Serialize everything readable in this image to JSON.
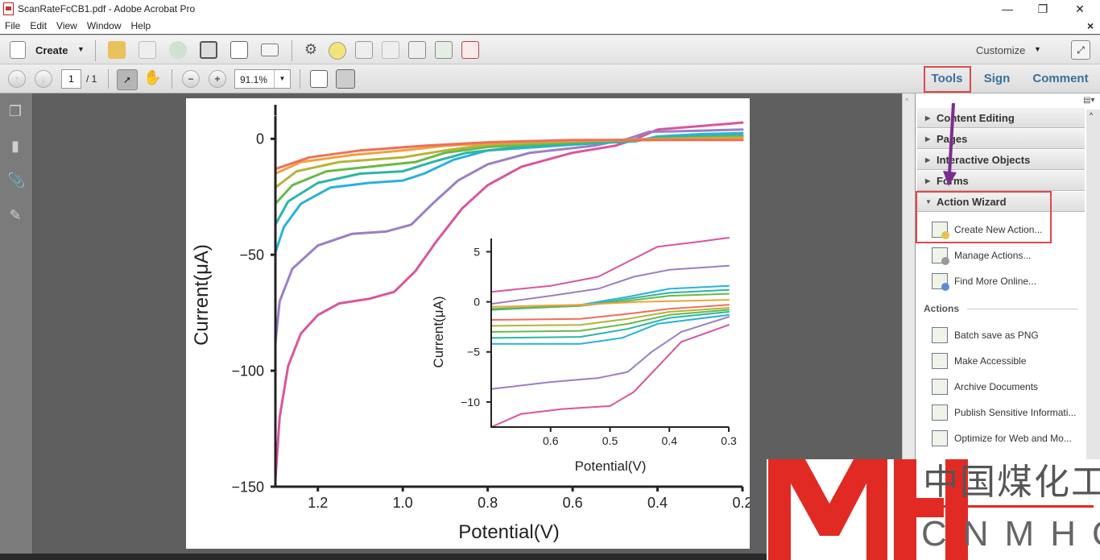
{
  "window": {
    "title": "ScanRateFcCB1.pdf - Adobe Acrobat Pro",
    "controls": [
      "—",
      "❐",
      "✕"
    ]
  },
  "menu": [
    "File",
    "Edit",
    "View",
    "Window",
    "Help"
  ],
  "toolbar": {
    "create_label": "Create",
    "customize_label": "Customize",
    "close_doc": "×"
  },
  "nav": {
    "page_current": "1",
    "page_total": "/ 1",
    "zoom": "91.1%"
  },
  "tabs": [
    "Tools",
    "Sign",
    "Comment"
  ],
  "panel": {
    "sections": [
      {
        "label": "Content Editing",
        "expanded": false
      },
      {
        "label": "Pages",
        "expanded": false
      },
      {
        "label": "Interactive Objects",
        "expanded": false
      },
      {
        "label": "Forms",
        "expanded": false
      },
      {
        "label": "Action Wizard",
        "expanded": true
      }
    ],
    "wizard_items": [
      "Create New Action...",
      "Manage Actions...",
      "Find More Online..."
    ],
    "actions_heading": "Actions",
    "actions": [
      "Batch save as PNG",
      "Make Accessible",
      "Archive Documents",
      "Publish Sensitive Informati...",
      "Optimize for Web and Mo..."
    ]
  },
  "annotation_color": "#7b2d8e",
  "highlight_color": "#e04848",
  "watermark": {
    "chinese": "中国煤化工",
    "latin": "CNMHG"
  },
  "chart_data": [
    {
      "type": "line",
      "xlabel": "Potential(V)",
      "ylabel": "Current(μA)",
      "xlim": [
        1.3,
        0.2
      ],
      "ylim": [
        -150,
        10
      ],
      "x_reversed": true,
      "xticks": [
        "1.2",
        "1.0",
        "0.8",
        "0.6",
        "0.4",
        "0.2"
      ],
      "xtick_values": [
        1.2,
        1.0,
        0.8,
        0.6,
        0.4,
        0.2
      ],
      "yticks": [
        "0",
        "−50",
        "−100",
        "−150"
      ],
      "ytick_values": [
        0,
        -50,
        -100,
        -150
      ],
      "series": [
        {
          "color": "#d9559e",
          "points": [
            [
              1.3,
              -147
            ],
            [
              1.29,
              -120
            ],
            [
              1.27,
              -98
            ],
            [
              1.24,
              -84
            ],
            [
              1.2,
              -76
            ],
            [
              1.15,
              -71
            ],
            [
              1.08,
              -69
            ],
            [
              1.02,
              -66
            ],
            [
              0.97,
              -57
            ],
            [
              0.92,
              -44
            ],
            [
              0.86,
              -30
            ],
            [
              0.8,
              -20
            ],
            [
              0.72,
              -12
            ],
            [
              0.6,
              -6
            ],
            [
              0.5,
              -3
            ],
            [
              0.45,
              0
            ],
            [
              0.4,
              4
            ],
            [
              0.3,
              5.5
            ],
            [
              0.2,
              7
            ]
          ]
        },
        {
          "color": "#9b7fc4",
          "points": [
            [
              1.3,
              -88
            ],
            [
              1.29,
              -70
            ],
            [
              1.26,
              -56
            ],
            [
              1.2,
              -46
            ],
            [
              1.12,
              -41
            ],
            [
              1.04,
              -40
            ],
            [
              0.98,
              -37
            ],
            [
              0.93,
              -28
            ],
            [
              0.87,
              -18
            ],
            [
              0.8,
              -11
            ],
            [
              0.7,
              -6
            ],
            [
              0.55,
              -3
            ],
            [
              0.47,
              0
            ],
            [
              0.42,
              3
            ],
            [
              0.3,
              3.5
            ],
            [
              0.2,
              4
            ]
          ]
        },
        {
          "color": "#2ab1dc",
          "points": [
            [
              1.3,
              -49
            ],
            [
              1.28,
              -38
            ],
            [
              1.24,
              -28
            ],
            [
              1.17,
              -21
            ],
            [
              1.08,
              -19
            ],
            [
              1.0,
              -18
            ],
            [
              0.95,
              -15
            ],
            [
              0.88,
              -9
            ],
            [
              0.8,
              -5
            ],
            [
              0.6,
              -2.5
            ],
            [
              0.45,
              -1
            ],
            [
              0.4,
              1
            ],
            [
              0.3,
              2
            ],
            [
              0.2,
              2.5
            ]
          ]
        },
        {
          "color": "#2cb5a5",
          "points": [
            [
              1.3,
              -37
            ],
            [
              1.27,
              -27
            ],
            [
              1.2,
              -19
            ],
            [
              1.1,
              -15
            ],
            [
              1.0,
              -14
            ],
            [
              0.93,
              -10
            ],
            [
              0.85,
              -6
            ],
            [
              0.7,
              -3
            ],
            [
              0.45,
              -1
            ],
            [
              0.4,
              0.5
            ],
            [
              0.2,
              1.5
            ]
          ]
        },
        {
          "color": "#6ab84a",
          "points": [
            [
              1.3,
              -28
            ],
            [
              1.26,
              -20
            ],
            [
              1.18,
              -14
            ],
            [
              1.05,
              -11.5
            ],
            [
              0.97,
              -10
            ],
            [
              0.9,
              -6
            ],
            [
              0.8,
              -3.5
            ],
            [
              0.6,
              -1.5
            ],
            [
              0.4,
              0
            ],
            [
              0.2,
              1
            ]
          ]
        },
        {
          "color": "#b5b33a",
          "points": [
            [
              1.3,
              -21
            ],
            [
              1.25,
              -14
            ],
            [
              1.15,
              -10
            ],
            [
              1.0,
              -8
            ],
            [
              0.9,
              -5
            ],
            [
              0.8,
              -2.5
            ],
            [
              0.6,
              -1
            ],
            [
              0.4,
              0
            ],
            [
              0.2,
              0.5
            ]
          ]
        },
        {
          "color": "#f2a13a",
          "points": [
            [
              1.3,
              -15
            ],
            [
              1.24,
              -10
            ],
            [
              1.12,
              -7
            ],
            [
              1.0,
              -5
            ],
            [
              0.9,
              -3
            ],
            [
              0.7,
              -1
            ],
            [
              0.4,
              -0.5
            ],
            [
              0.2,
              0
            ]
          ]
        },
        {
          "color": "#ef6e5a",
          "points": [
            [
              1.3,
              -13
            ],
            [
              1.22,
              -8
            ],
            [
              1.1,
              -5
            ],
            [
              0.95,
              -3
            ],
            [
              0.8,
              -1.5
            ],
            [
              0.6,
              -0.5
            ],
            [
              0.4,
              -0.5
            ],
            [
              0.2,
              -0.5
            ]
          ]
        }
      ]
    },
    {
      "type": "line",
      "inset": true,
      "xlabel": "Potential(V)",
      "ylabel": "Current(μA)",
      "xlim": [
        0.7,
        0.3
      ],
      "ylim": [
        -12.5,
        6
      ],
      "x_reversed": true,
      "xticks": [
        "0.6",
        "0.5",
        "0.4",
        "0.3"
      ],
      "xtick_values": [
        0.6,
        0.5,
        0.4,
        0.3
      ],
      "yticks": [
        "5",
        "0",
        "−5",
        "−10"
      ],
      "ytick_values": [
        5,
        0,
        -5,
        -10
      ],
      "series": [
        {
          "color": "#d9559e",
          "points": [
            [
              0.7,
              1
            ],
            [
              0.6,
              1.6
            ],
            [
              0.52,
              2.5
            ],
            [
              0.47,
              4
            ],
            [
              0.42,
              5.5
            ],
            [
              0.35,
              6
            ],
            [
              0.3,
              6.4
            ]
          ]
        },
        {
          "color": "#9b7fc4",
          "points": [
            [
              0.7,
              -0.2
            ],
            [
              0.6,
              0.6
            ],
            [
              0.52,
              1.3
            ],
            [
              0.46,
              2.5
            ],
            [
              0.4,
              3.2
            ],
            [
              0.3,
              3.6
            ]
          ]
        },
        {
          "color": "#2ab1dc",
          "points": [
            [
              0.7,
              -0.8
            ],
            [
              0.55,
              -0.3
            ],
            [
              0.47,
              0.5
            ],
            [
              0.4,
              1.3
            ],
            [
              0.3,
              1.6
            ]
          ]
        },
        {
          "color": "#2cb5a5",
          "points": [
            [
              0.7,
              -0.8
            ],
            [
              0.55,
              -0.4
            ],
            [
              0.47,
              0.3
            ],
            [
              0.4,
              0.9
            ],
            [
              0.3,
              1.2
            ]
          ]
        },
        {
          "color": "#6ab84a",
          "points": [
            [
              0.7,
              -0.7
            ],
            [
              0.55,
              -0.4
            ],
            [
              0.47,
              0.1
            ],
            [
              0.4,
              0.6
            ],
            [
              0.3,
              0.8
            ]
          ]
        },
        {
          "color": "#f2a13a",
          "points": [
            [
              0.7,
              -0.5
            ],
            [
              0.55,
              -0.3
            ],
            [
              0.45,
              0
            ],
            [
              0.3,
              0.2
            ]
          ]
        },
        {
          "color": "#ef6e5a",
          "points": [
            [
              0.7,
              -1.8
            ],
            [
              0.55,
              -1.7
            ],
            [
              0.47,
              -1.2
            ],
            [
              0.4,
              -0.7
            ],
            [
              0.3,
              -0.3
            ]
          ]
        },
        {
          "color": "#b5b33a",
          "points": [
            [
              0.7,
              -2.4
            ],
            [
              0.55,
              -2.3
            ],
            [
              0.47,
              -1.7
            ],
            [
              0.4,
              -1
            ],
            [
              0.3,
              -0.6
            ]
          ]
        },
        {
          "color": "#6ab84a",
          "points": [
            [
              0.7,
              -3
            ],
            [
              0.55,
              -2.9
            ],
            [
              0.47,
              -2.2
            ],
            [
              0.4,
              -1.3
            ],
            [
              0.3,
              -0.8
            ]
          ]
        },
        {
          "color": "#2cb5a5",
          "points": [
            [
              0.7,
              -3.6
            ],
            [
              0.55,
              -3.5
            ],
            [
              0.47,
              -2.7
            ],
            [
              0.4,
              -1.6
            ],
            [
              0.3,
              -1
            ]
          ]
        },
        {
          "color": "#2ab1dc",
          "points": [
            [
              0.7,
              -4.2
            ],
            [
              0.55,
              -4.2
            ],
            [
              0.48,
              -3.6
            ],
            [
              0.42,
              -2.2
            ],
            [
              0.3,
              -1.3
            ]
          ]
        },
        {
          "color": "#9b7fc4",
          "points": [
            [
              0.7,
              -8.7
            ],
            [
              0.6,
              -8
            ],
            [
              0.52,
              -7.6
            ],
            [
              0.47,
              -7
            ],
            [
              0.43,
              -5
            ],
            [
              0.38,
              -3
            ],
            [
              0.3,
              -1.5
            ]
          ]
        },
        {
          "color": "#d9559e",
          "points": [
            [
              0.7,
              -12.5
            ],
            [
              0.65,
              -11.2
            ],
            [
              0.58,
              -10.7
            ],
            [
              0.5,
              -10.4
            ],
            [
              0.46,
              -9
            ],
            [
              0.42,
              -6.5
            ],
            [
              0.38,
              -4
            ],
            [
              0.3,
              -2.3
            ]
          ]
        }
      ]
    }
  ]
}
